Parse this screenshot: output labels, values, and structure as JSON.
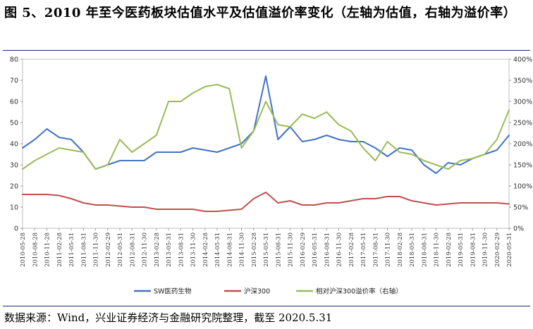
{
  "title": "图 5、2010 年至今医药板块估值水平及估值溢价率变化（左轴为估值，右轴为溢价率）",
  "source": "数据来源：Wind，兴业证券经济与金融研究院整理，截至 2020.5.31",
  "chart_data": {
    "type": "line",
    "x": [
      "2010-05-28",
      "2010-08-28",
      "2010-11-28",
      "2011-02-28",
      "2011-05-31",
      "2011-08-31",
      "2011-11-30",
      "2012-02-29",
      "2012-05-31",
      "2012-08-31",
      "2012-11-30",
      "2013-02-28",
      "2013-05-31",
      "2013-08-31",
      "2013-11-30",
      "2014-02-28",
      "2014-05-31",
      "2014-08-31",
      "2014-11-30",
      "2015-02-28",
      "2015-05-31",
      "2015-08-31",
      "2015-11-30",
      "2016-02-29",
      "2016-05-31",
      "2016-08-31",
      "2016-11-30",
      "2017-02-28",
      "2017-05-31",
      "2017-08-31",
      "2017-11-30",
      "2018-02-28",
      "2018-05-31",
      "2018-08-31",
      "2018-11-30",
      "2019-02-28",
      "2019-05-31",
      "2019-08-31",
      "2019-11-30",
      "2020-02-29",
      "2020-05-31"
    ],
    "left_axis": {
      "ylim": [
        0,
        80
      ],
      "ticks": [
        0,
        10,
        20,
        30,
        40,
        50,
        60,
        70,
        80
      ]
    },
    "right_axis": {
      "ylim": [
        0,
        400
      ],
      "ticks": [
        "0%",
        "50%",
        "100%",
        "150%",
        "200%",
        "250%",
        "300%",
        "350%",
        "400%"
      ]
    },
    "series": [
      {
        "name": "SW医药生物",
        "axis": "left",
        "color": "#4472c4",
        "values": [
          38,
          42,
          47,
          43,
          42,
          36,
          28,
          30,
          32,
          32,
          32,
          36,
          36,
          36,
          38,
          37,
          36,
          38,
          40,
          46,
          72,
          42,
          48,
          41,
          42,
          44,
          42,
          41,
          41,
          38,
          34,
          38,
          37,
          30,
          26,
          31,
          30,
          33,
          35,
          37,
          44
        ]
      },
      {
        "name": "沪深300",
        "axis": "left",
        "color": "#c0504d",
        "values": [
          16,
          16,
          16,
          15.5,
          14,
          12,
          11,
          11,
          10.5,
          10,
          10,
          9,
          9,
          9,
          9,
          8,
          8,
          8.5,
          9,
          14,
          17,
          12,
          13,
          11,
          11,
          12,
          12,
          13,
          14,
          14,
          15,
          15,
          13,
          12,
          11,
          11.5,
          12,
          12,
          12,
          12,
          11.5
        ]
      },
      {
        "name": "相对沪深300溢价率（右轴）",
        "axis": "right",
        "color": "#9bbb59",
        "values": [
          140,
          160,
          175,
          190,
          185,
          180,
          140,
          150,
          210,
          180,
          200,
          220,
          300,
          300,
          320,
          335,
          340,
          330,
          190,
          230,
          300,
          245,
          240,
          270,
          260,
          275,
          245,
          230,
          190,
          160,
          205,
          180,
          175,
          160,
          150,
          140,
          160,
          165,
          175,
          210,
          280
        ]
      }
    ],
    "legend": "bottom",
    "grid": false
  }
}
